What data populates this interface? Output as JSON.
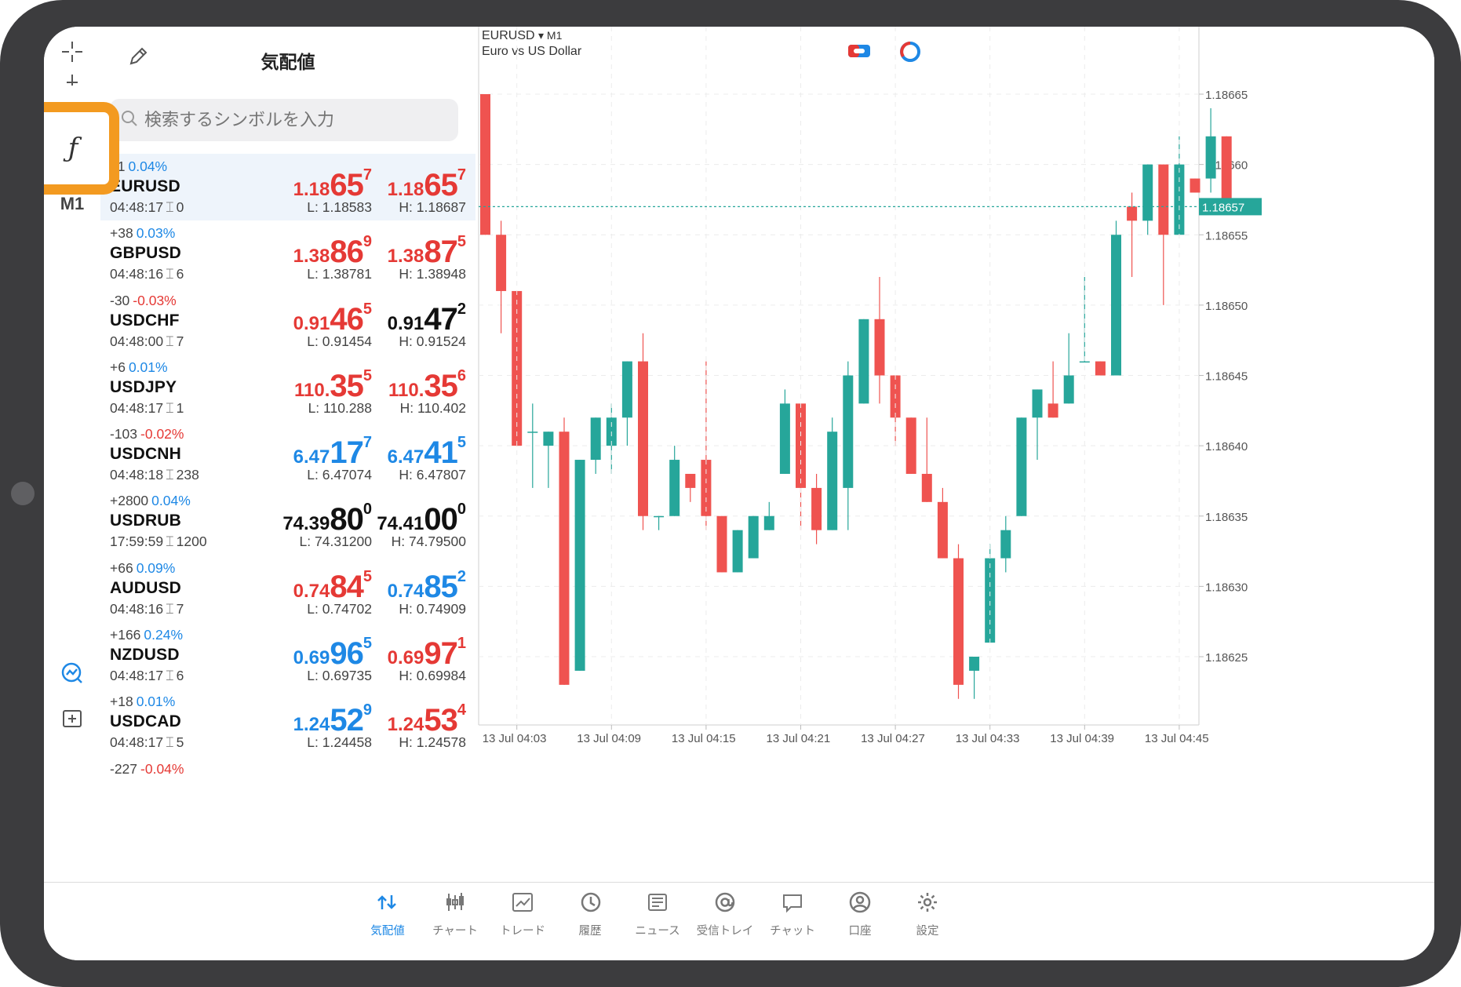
{
  "quotes_panel": {
    "title": "気配値",
    "search_placeholder": "検索するシンボルを入力",
    "rows": [
      {
        "change_pts": "51",
        "change_pct": "0.04%",
        "pct_color": "blue",
        "symbol": "EURUSD",
        "time": "04:48:17",
        "spread": "0",
        "bid": {
          "a": "1.18",
          "b": "65",
          "c": "7",
          "color": "red"
        },
        "ask": {
          "a": "1.18",
          "b": "65",
          "c": "7",
          "color": "red"
        },
        "low": "L: 1.18583",
        "high": "H: 1.18687",
        "selected": true
      },
      {
        "change_pts": "+38",
        "change_pct": "0.03%",
        "pct_color": "blue",
        "symbol": "GBPUSD",
        "time": "04:48:16",
        "spread": "6",
        "bid": {
          "a": "1.38",
          "b": "86",
          "c": "9",
          "color": "red"
        },
        "ask": {
          "a": "1.38",
          "b": "87",
          "c": "5",
          "color": "red"
        },
        "low": "L: 1.38781",
        "high": "H: 1.38948"
      },
      {
        "change_pts": "-30",
        "change_pct": "-0.03%",
        "pct_color": "red",
        "symbol": "USDCHF",
        "time": "04:48:00",
        "spread": "7",
        "bid": {
          "a": "0.91",
          "b": "46",
          "c": "5",
          "color": "red"
        },
        "ask": {
          "a": "0.91",
          "b": "47",
          "c": "2",
          "color": "black"
        },
        "low": "L: 0.91454",
        "high": "H: 0.91524"
      },
      {
        "change_pts": "+6",
        "change_pct": "0.01%",
        "pct_color": "blue",
        "symbol": "USDJPY",
        "time": "04:48:17",
        "spread": "1",
        "bid": {
          "a": "110.",
          "b": "35",
          "c": "5",
          "color": "red"
        },
        "ask": {
          "a": "110.",
          "b": "35",
          "c": "6",
          "color": "red"
        },
        "low": "L: 110.288",
        "high": "H: 110.402"
      },
      {
        "change_pts": "-103",
        "change_pct": "-0.02%",
        "pct_color": "red",
        "symbol": "USDCNH",
        "time": "04:48:18",
        "spread": "238",
        "bid": {
          "a": "6.47",
          "b": "17",
          "c": "7",
          "color": "blue"
        },
        "ask": {
          "a": "6.47",
          "b": "41",
          "c": "5",
          "color": "blue"
        },
        "low": "L: 6.47074",
        "high": "H: 6.47807"
      },
      {
        "change_pts": "+2800",
        "change_pct": "0.04%",
        "pct_color": "blue",
        "symbol": "USDRUB",
        "time": "17:59:59",
        "spread": "1200",
        "bid": {
          "a": "74.39",
          "b": "80",
          "c": "0",
          "color": "black"
        },
        "ask": {
          "a": "74.41",
          "b": "00",
          "c": "0",
          "color": "black"
        },
        "low": "L: 74.31200",
        "high": "H: 74.79500"
      },
      {
        "change_pts": "+66",
        "change_pct": "0.09%",
        "pct_color": "blue",
        "symbol": "AUDUSD",
        "time": "04:48:16",
        "spread": "7",
        "bid": {
          "a": "0.74",
          "b": "84",
          "c": "5",
          "color": "red"
        },
        "ask": {
          "a": "0.74",
          "b": "85",
          "c": "2",
          "color": "blue"
        },
        "low": "L: 0.74702",
        "high": "H: 0.74909"
      },
      {
        "change_pts": "+166",
        "change_pct": "0.24%",
        "pct_color": "blue",
        "symbol": "NZDUSD",
        "time": "04:48:17",
        "spread": "6",
        "bid": {
          "a": "0.69",
          "b": "96",
          "c": "5",
          "color": "blue"
        },
        "ask": {
          "a": "0.69",
          "b": "97",
          "c": "1",
          "color": "red"
        },
        "low": "L: 0.69735",
        "high": "H: 0.69984"
      },
      {
        "change_pts": "+18",
        "change_pct": "0.01%",
        "pct_color": "blue",
        "symbol": "USDCAD",
        "time": "04:48:17",
        "spread": "5",
        "bid": {
          "a": "1.24",
          "b": "52",
          "c": "9",
          "color": "blue"
        },
        "ask": {
          "a": "1.24",
          "b": "53",
          "c": "4",
          "color": "red"
        },
        "low": "L: 1.24458",
        "high": "H: 1.24578"
      },
      {
        "change_pts": "-227",
        "change_pct": "-0.04%",
        "pct_color": "red",
        "symbol": "",
        "time": "",
        "spread": "",
        "bid": {
          "a": "",
          "b": "",
          "c": "",
          "color": "black"
        },
        "ask": {
          "a": "",
          "b": "",
          "c": "",
          "color": "black"
        },
        "low": "",
        "high": ""
      }
    ]
  },
  "toolbar": {
    "timeframe": "M1",
    "function_icon": "ƒ",
    "highlight_color": "#f39a20"
  },
  "chart_data": {
    "type": "candlestick",
    "symbol": "EURUSD",
    "symbol_suffix": "▾ M1",
    "description": "Euro vs US Dollar",
    "y_labels": [
      "1.18665",
      "1.18660",
      "1.18655",
      "1.18650",
      "1.18645",
      "1.18640",
      "1.18635",
      "1.18630",
      "1.18625"
    ],
    "y_values": [
      1.18665,
      1.1866,
      1.18655,
      1.1865,
      1.18645,
      1.1864,
      1.18635,
      1.1863,
      1.18625
    ],
    "x_labels": [
      "13 Jul 04:03",
      "13 Jul 04:09",
      "13 Jul 04:15",
      "13 Jul 04:21",
      "13 Jul 04:27",
      "13 Jul 04:33",
      "13 Jul 04:39",
      "13 Jul 04:45"
    ],
    "current_price": "1.18657",
    "up_color": "#26a69a",
    "down_color": "#ef5350",
    "candles": [
      {
        "o": 1.18665,
        "h": 1.18665,
        "l": 1.18655,
        "c": 1.18655
      },
      {
        "o": 1.18655,
        "h": 1.18656,
        "l": 1.18648,
        "c": 1.18651
      },
      {
        "o": 1.18651,
        "h": 1.18651,
        "l": 1.1864,
        "c": 1.1864
      },
      {
        "o": 1.18641,
        "h": 1.18643,
        "l": 1.18637,
        "c": 1.18641
      },
      {
        "o": 1.1864,
        "h": 1.18641,
        "l": 1.18637,
        "c": 1.18641
      },
      {
        "o": 1.18641,
        "h": 1.18642,
        "l": 1.18623,
        "c": 1.18623
      },
      {
        "o": 1.18624,
        "h": 1.18639,
        "l": 1.18624,
        "c": 1.18639
      },
      {
        "o": 1.18639,
        "h": 1.18642,
        "l": 1.18638,
        "c": 1.18642
      },
      {
        "o": 1.1864,
        "h": 1.18643,
        "l": 1.18638,
        "c": 1.18642
      },
      {
        "o": 1.18642,
        "h": 1.18646,
        "l": 1.1864,
        "c": 1.18646
      },
      {
        "o": 1.18646,
        "h": 1.18648,
        "l": 1.18634,
        "c": 1.18635
      },
      {
        "o": 1.18635,
        "h": 1.18635,
        "l": 1.18634,
        "c": 1.18635
      },
      {
        "o": 1.18635,
        "h": 1.1864,
        "l": 1.18635,
        "c": 1.18639
      },
      {
        "o": 1.18638,
        "h": 1.18638,
        "l": 1.18636,
        "c": 1.18637
      },
      {
        "o": 1.18639,
        "h": 1.18646,
        "l": 1.18634,
        "c": 1.18635
      },
      {
        "o": 1.18635,
        "h": 1.18635,
        "l": 1.18631,
        "c": 1.18631
      },
      {
        "o": 1.18631,
        "h": 1.18634,
        "l": 1.18631,
        "c": 1.18634
      },
      {
        "o": 1.18632,
        "h": 1.18635,
        "l": 1.18632,
        "c": 1.18635
      },
      {
        "o": 1.18634,
        "h": 1.18636,
        "l": 1.18634,
        "c": 1.18635
      },
      {
        "o": 1.18638,
        "h": 1.18644,
        "l": 1.18638,
        "c": 1.18643
      },
      {
        "o": 1.18643,
        "h": 1.18643,
        "l": 1.18634,
        "c": 1.18637
      },
      {
        "o": 1.18637,
        "h": 1.18638,
        "l": 1.18633,
        "c": 1.18634
      },
      {
        "o": 1.18634,
        "h": 1.18642,
        "l": 1.18634,
        "c": 1.18641
      },
      {
        "o": 1.18637,
        "h": 1.18646,
        "l": 1.18634,
        "c": 1.18645
      },
      {
        "o": 1.18643,
        "h": 1.18649,
        "l": 1.18643,
        "c": 1.18649
      },
      {
        "o": 1.18649,
        "h": 1.18652,
        "l": 1.18643,
        "c": 1.18645
      },
      {
        "o": 1.18645,
        "h": 1.18645,
        "l": 1.1864,
        "c": 1.18642
      },
      {
        "o": 1.18642,
        "h": 1.18642,
        "l": 1.18638,
        "c": 1.18638
      },
      {
        "o": 1.18638,
        "h": 1.18642,
        "l": 1.18636,
        "c": 1.18636
      },
      {
        "o": 1.18636,
        "h": 1.18637,
        "l": 1.18632,
        "c": 1.18632
      },
      {
        "o": 1.18632,
        "h": 1.18633,
        "l": 1.18622,
        "c": 1.18623
      },
      {
        "o": 1.18624,
        "h": 1.18625,
        "l": 1.18622,
        "c": 1.18625
      },
      {
        "o": 1.18626,
        "h": 1.18633,
        "l": 1.18626,
        "c": 1.18632
      },
      {
        "o": 1.18632,
        "h": 1.18635,
        "l": 1.18631,
        "c": 1.18634
      },
      {
        "o": 1.18635,
        "h": 1.18642,
        "l": 1.18635,
        "c": 1.18642
      },
      {
        "o": 1.18642,
        "h": 1.18644,
        "l": 1.18639,
        "c": 1.18644
      },
      {
        "o": 1.18643,
        "h": 1.18646,
        "l": 1.18642,
        "c": 1.18642
      },
      {
        "o": 1.18643,
        "h": 1.18648,
        "l": 1.18643,
        "c": 1.18645
      },
      {
        "o": 1.18646,
        "h": 1.18652,
        "l": 1.18646,
        "c": 1.18646
      },
      {
        "o": 1.18646,
        "h": 1.18646,
        "l": 1.18645,
        "c": 1.18645
      },
      {
        "o": 1.18645,
        "h": 1.18656,
        "l": 1.18645,
        "c": 1.18655
      },
      {
        "o": 1.18657,
        "h": 1.18658,
        "l": 1.18652,
        "c": 1.18656
      },
      {
        "o": 1.18656,
        "h": 1.1866,
        "l": 1.18655,
        "c": 1.1866
      },
      {
        "o": 1.1866,
        "h": 1.1866,
        "l": 1.1865,
        "c": 1.18655
      },
      {
        "o": 1.18655,
        "h": 1.18662,
        "l": 1.18655,
        "c": 1.1866
      },
      {
        "o": 1.18659,
        "h": 1.18659,
        "l": 1.18658,
        "c": 1.18658
      },
      {
        "o": 1.18659,
        "h": 1.18664,
        "l": 1.18658,
        "c": 1.18662
      },
      {
        "o": 1.18662,
        "h": 1.18662,
        "l": 1.18657,
        "c": 1.18657
      }
    ]
  },
  "chart_tools": {
    "one_click_icon": "one-click-trading-icon",
    "signal_icon": "signal-icon"
  },
  "bottom_nav": [
    {
      "label": "気配値",
      "icon": "quotes-icon",
      "active": true
    },
    {
      "label": "チャート",
      "icon": "chart-icon"
    },
    {
      "label": "トレード",
      "icon": "trade-icon"
    },
    {
      "label": "履歴",
      "icon": "history-icon"
    },
    {
      "label": "ニュース",
      "icon": "news-icon"
    },
    {
      "label": "受信トレイ",
      "icon": "mailbox-icon"
    },
    {
      "label": "チャット",
      "icon": "chat-icon"
    },
    {
      "label": "口座",
      "icon": "account-icon"
    },
    {
      "label": "設定",
      "icon": "settings-icon"
    }
  ]
}
